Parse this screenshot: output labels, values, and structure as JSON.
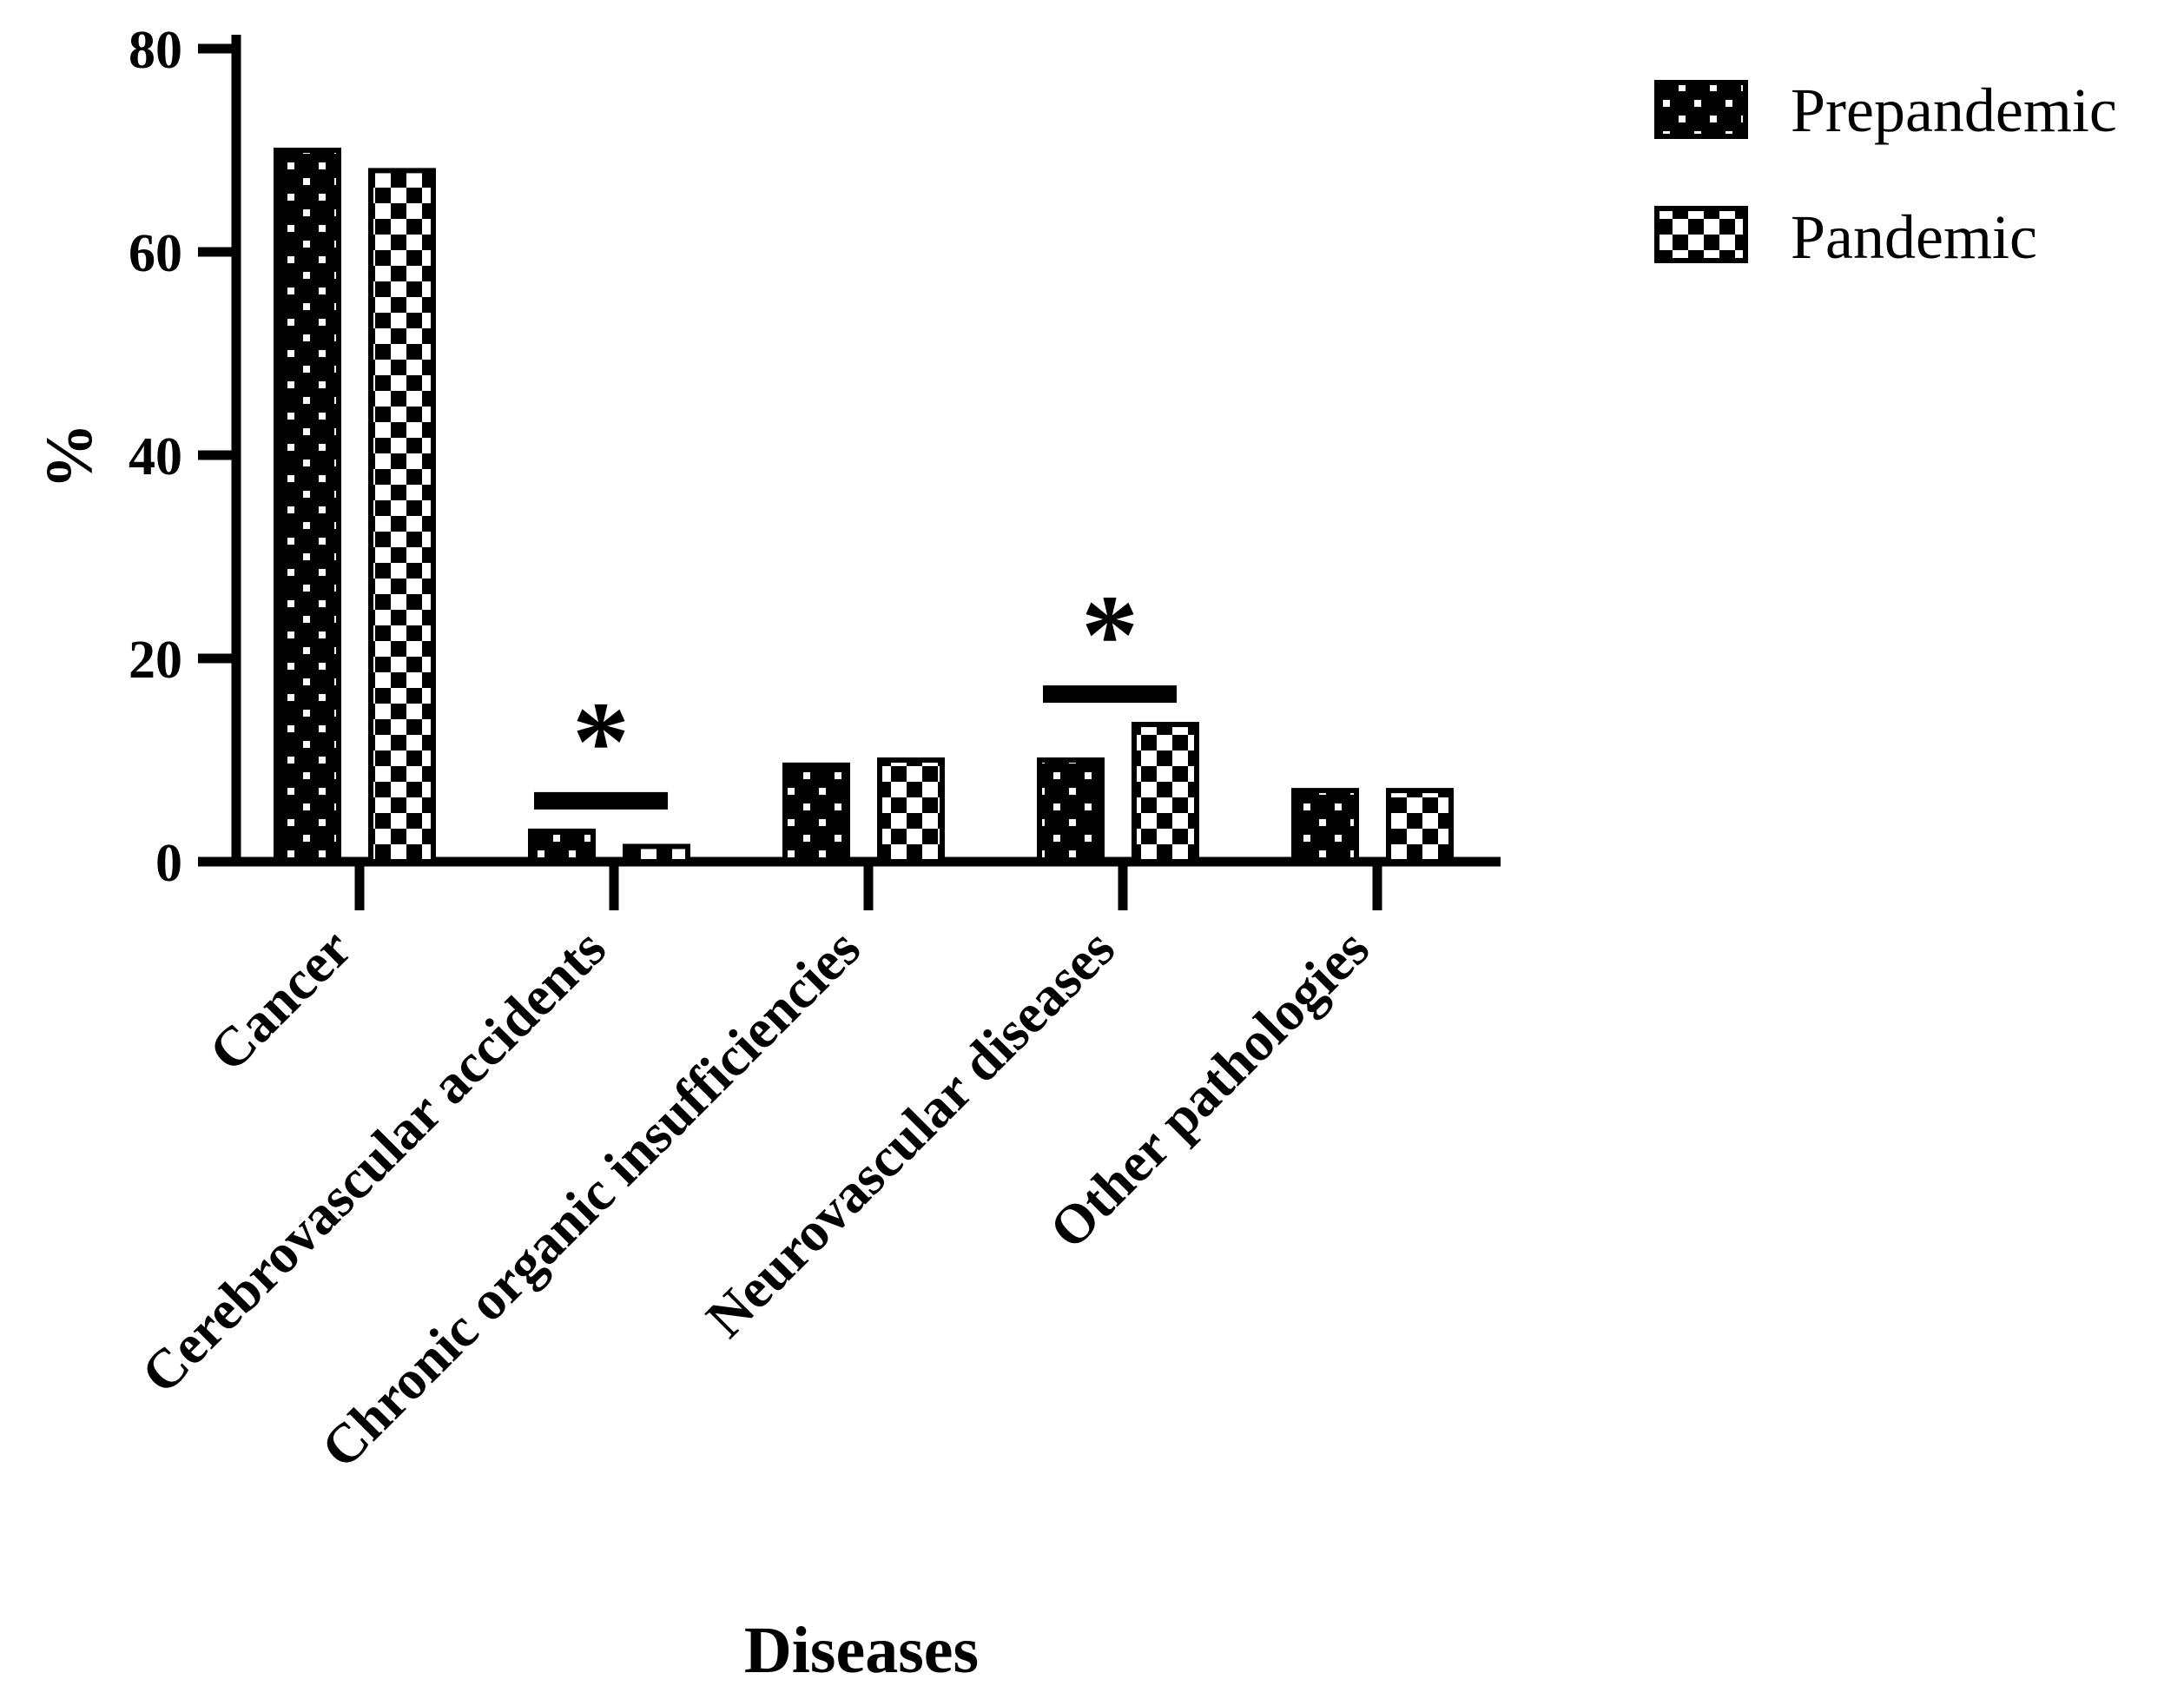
{
  "figure": {
    "ylabel": "%",
    "xlabel": "Diseases"
  },
  "legend": {
    "position": "top-right",
    "items": [
      {
        "label": "Prepandemic",
        "pattern": "dotted-black-swatch"
      },
      {
        "label": "Pandemic",
        "pattern": "checkerboard-swatch"
      }
    ]
  },
  "chart_data": {
    "type": "bar",
    "title": "",
    "xlabel": "Diseases",
    "ylabel": "%",
    "ylim": [
      0,
      80
    ],
    "yticks": [
      0,
      20,
      40,
      60,
      80
    ],
    "grid": false,
    "legend_position": "top-right",
    "categories": [
      "Cancer",
      "Cerebrovascular accidents",
      "Chronic organic insufficiencies",
      "Neurovascular diseases",
      "Other pathologies"
    ],
    "series": [
      {
        "name": "Prepandemic",
        "pattern": "dots",
        "values": [
          70,
          3,
          9.5,
          10,
          7
        ]
      },
      {
        "name": "Pandemic",
        "pattern": "checkerboard",
        "values": [
          68,
          1.5,
          10,
          13.5,
          7
        ]
      }
    ],
    "significance": [
      {
        "category": "Cerebrovascular accidents",
        "marker": "*"
      },
      {
        "category": "Neurovascular diseases",
        "marker": "*"
      }
    ],
    "colors": {
      "foreground": "#000000",
      "background": "#ffffff"
    }
  }
}
